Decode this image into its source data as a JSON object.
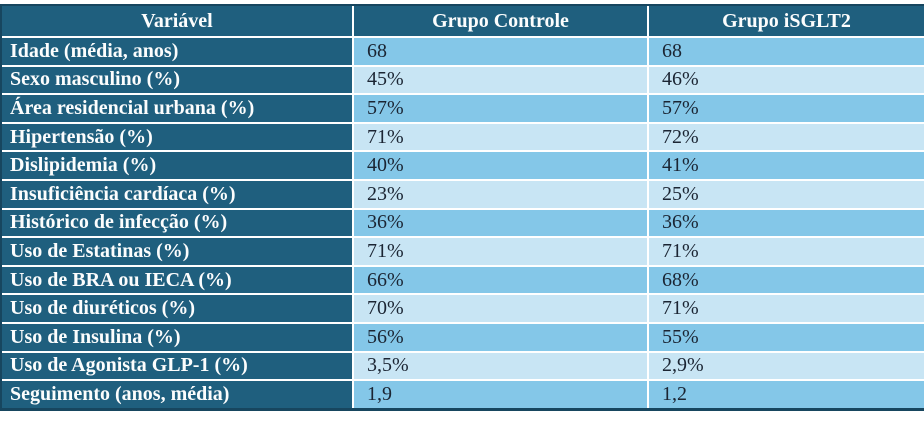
{
  "table": {
    "columns": [
      "Variável",
      "Grupo Controle",
      "Grupo iSGLT2"
    ],
    "rows": [
      {
        "label": "Idade (média, anos)",
        "controle": "68",
        "isglt2": "68"
      },
      {
        "label": "Sexo masculino (%)",
        "controle": "45%",
        "isglt2": "46%"
      },
      {
        "label": "Área residencial urbana (%)",
        "controle": "57%",
        "isglt2": "57%"
      },
      {
        "label": "Hipertensão (%)",
        "controle": "71%",
        "isglt2": "72%"
      },
      {
        "label": "Dislipidemia (%)",
        "controle": "40%",
        "isglt2": "41%"
      },
      {
        "label": "Insuficiência cardíaca (%)",
        "controle": "23%",
        "isglt2": "25%"
      },
      {
        "label": "Histórico de infecção (%)",
        "controle": "36%",
        "isglt2": "36%"
      },
      {
        "label": "Uso de Estatinas (%)",
        "controle": "71%",
        "isglt2": "71%"
      },
      {
        "label": "Uso de BRA ou IECA (%)",
        "controle": "66%",
        "isglt2": "68%"
      },
      {
        "label": "Uso de diuréticos (%)",
        "controle": "70%",
        "isglt2": "71%"
      },
      {
        "label": "Uso de Insulina (%)",
        "controle": "56%",
        "isglt2": "55%"
      },
      {
        "label": "Uso de Agonista GLP-1 (%)",
        "controle": "3,5%",
        "isglt2": "2,9%"
      },
      {
        "label": "Seguimento (anos, média)",
        "controle": "1,9",
        "isglt2": "1,2"
      }
    ],
    "colors": {
      "header_bg": "#1f5f7e",
      "label_column_bg": "#1f5f7e",
      "row_band_medium": "#84c7e8",
      "row_band_light": "#c8e5f4",
      "gridline": "#ffffff",
      "outer_border": "#17465f",
      "header_text": "#fcfdfd",
      "data_text": "#1b2533"
    }
  }
}
